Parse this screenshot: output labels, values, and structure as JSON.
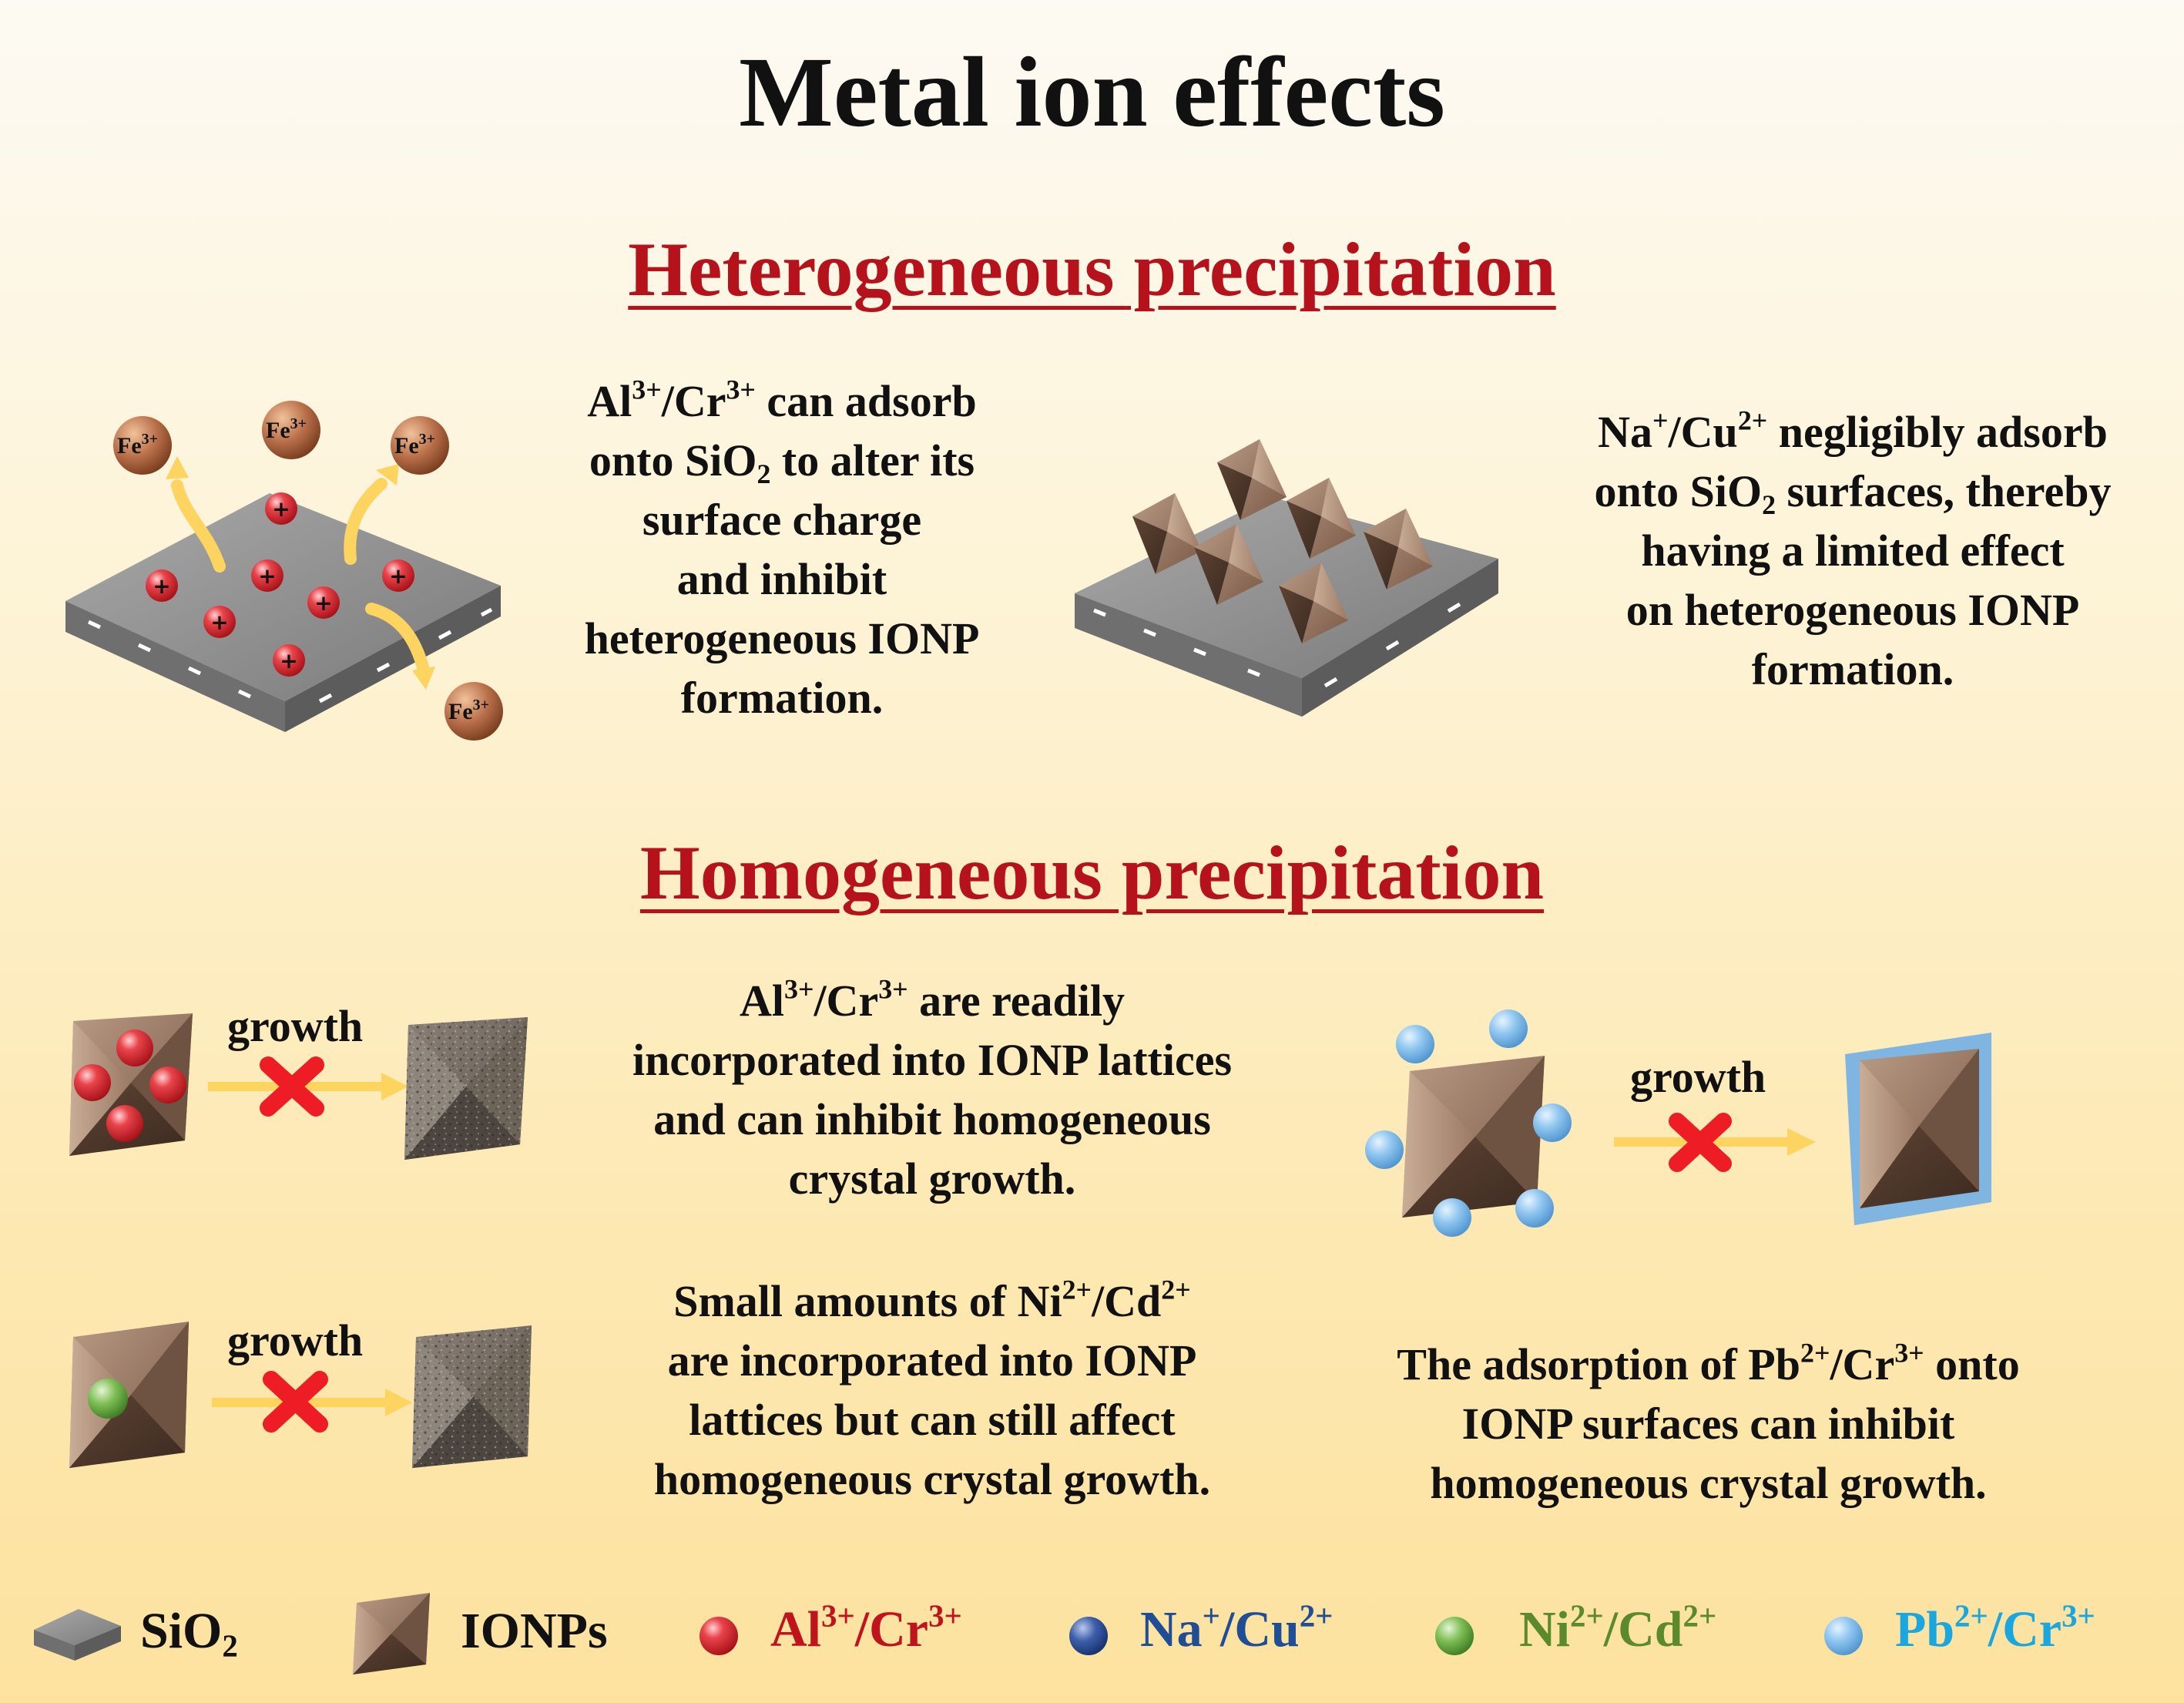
{
  "title": "Metal ion effects",
  "heterogeneous": {
    "title": "Heterogeneous precipitation",
    "left_text": {
      "l1_a": "Al",
      "l1_s1": "3+",
      "l1_b": "/Cr",
      "l1_s2": "3+",
      "l1_c": " can adsorb",
      "l2_a": "onto SiO",
      "l2_sub": "2",
      "l2_b": " to alter its",
      "l3": "surface charge",
      "l4": "and inhibit",
      "l5": "heterogeneous IONP",
      "l6": "formation."
    },
    "right_text": {
      "l1_a": "Na",
      "l1_s1": "+",
      "l1_b": "/Cu",
      "l1_s2": "2+",
      "l1_c": " negligibly adsorb",
      "l2_a": "onto SiO",
      "l2_sub": "2",
      "l2_b": " surfaces, thereby",
      "l3": "having a limited effect",
      "l4": "on heterogeneous IONP",
      "l5": "formation."
    },
    "fe_label": "Fe",
    "fe_charge": "3+",
    "plus_sign": "+"
  },
  "homogeneous": {
    "title": "Homogeneous precipitation",
    "growth_label": "growth",
    "text1": {
      "l1_a": "Al",
      "l1_s1": "3+",
      "l1_b": "/Cr",
      "l1_s2": "3+",
      "l1_c": " are readily",
      "l2": "incorporated into IONP lattices",
      "l3": "and can inhibit homogeneous",
      "l4": "crystal growth."
    },
    "text2": {
      "l1_a": "Small amounts of Ni",
      "l1_s1": "2+",
      "l1_b": "/Cd",
      "l1_s2": "2+",
      "l2": "are incorporated into IONP",
      "l3": "lattices but can still affect",
      "l4": "homogeneous crystal growth."
    },
    "text3": {
      "l1_a": "The adsorption of Pb",
      "l1_s1": "2+",
      "l1_b": "/Cr",
      "l1_s2": "3+",
      "l1_c": " onto",
      "l2": "IONP surfaces can inhibit",
      "l3": "homogeneous crystal growth."
    }
  },
  "legend": {
    "sio2": {
      "a": "SiO",
      "sub": "2"
    },
    "ionps": "IONPs",
    "al_cr": {
      "a": "Al",
      "s1": "3+",
      "b": "/Cr",
      "s2": "3+",
      "color": "#c0141d"
    },
    "na_cu": {
      "a": "Na",
      "s1": "+",
      "b": "/Cu",
      "s2": "2+",
      "color": "#1f4e96"
    },
    "ni_cd": {
      "a": "Ni",
      "s1": "2+",
      "b": "/Cd",
      "s2": "2+",
      "color": "#5b8a2c"
    },
    "pb_cr": {
      "a": "Pb",
      "s1": "2+",
      "b": "/Cr",
      "s2": "3+",
      "color": "#1aa6de"
    }
  },
  "colors": {
    "title_red": "#b5121b",
    "arrow_yellow": "#fcd45f",
    "cross_red": "#ee1c24",
    "slab_gray": "#8d8d8d",
    "ionp_brown": "#8a6a55"
  }
}
